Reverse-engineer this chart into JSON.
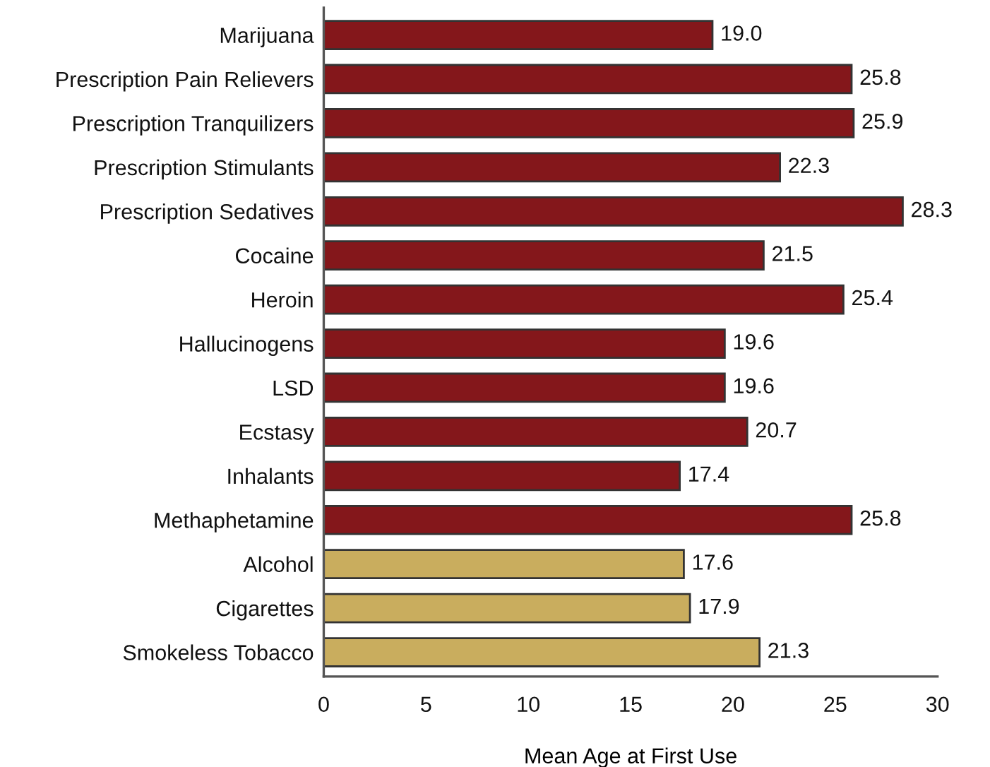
{
  "chart_data": {
    "type": "bar",
    "orientation": "horizontal",
    "xlabel": "Mean Age at First Use",
    "categories": [
      "Marijuana",
      "Prescription Pain Relievers",
      "Prescription Tranquilizers",
      "Prescription Stimulants",
      "Prescription Sedatives",
      "Cocaine",
      "Heroin",
      "Hallucinogens",
      "LSD",
      "Ecstasy",
      "Inhalants",
      "Methaphetamine",
      "Alcohol",
      "Cigarettes",
      "Smokeless Tobacco"
    ],
    "values": [
      19.0,
      25.8,
      25.9,
      22.3,
      28.3,
      21.5,
      25.4,
      19.6,
      19.6,
      20.7,
      17.4,
      25.8,
      17.6,
      17.9,
      21.3
    ],
    "value_labels": [
      "19.0",
      "25.8",
      "25.9",
      "22.3",
      "28.3",
      "21.5",
      "25.4",
      "19.6",
      "19.6",
      "20.7",
      "17.4",
      "25.8",
      "17.6",
      "17.9",
      "21.3"
    ],
    "colors": [
      "#84171b",
      "#84171b",
      "#84171b",
      "#84171b",
      "#84171b",
      "#84171b",
      "#84171b",
      "#84171b",
      "#84171b",
      "#84171b",
      "#84171b",
      "#84171b",
      "#c9ad5e",
      "#c9ad5e",
      "#c9ad5e"
    ],
    "xlim": [
      0,
      30
    ],
    "xticks": [
      0,
      5,
      10,
      15,
      20,
      25,
      30
    ]
  }
}
